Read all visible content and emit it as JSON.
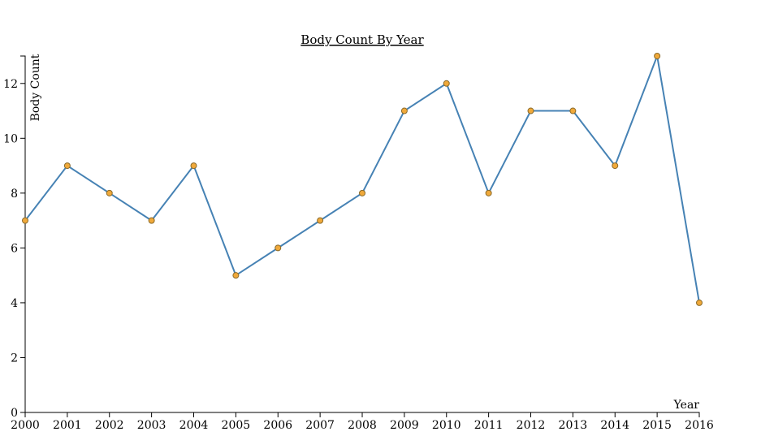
{
  "chart_data": {
    "type": "line",
    "title": "Body Count By Year",
    "xlabel": "Year",
    "ylabel": "Body Count",
    "x": [
      2000,
      2001,
      2002,
      2003,
      2004,
      2005,
      2006,
      2007,
      2008,
      2009,
      2010,
      2011,
      2012,
      2013,
      2014,
      2015,
      2016
    ],
    "values": [
      7,
      9,
      8,
      7,
      9,
      5,
      6,
      7,
      8,
      11,
      12,
      8,
      11,
      11,
      9,
      13,
      4
    ],
    "xlim": [
      2000,
      2016
    ],
    "ylim": [
      0,
      13
    ],
    "yticks": [
      0,
      2,
      4,
      6,
      8,
      10,
      12
    ],
    "grid": false,
    "colors": {
      "line": "#4682b4",
      "points": "#f0a93a"
    }
  }
}
